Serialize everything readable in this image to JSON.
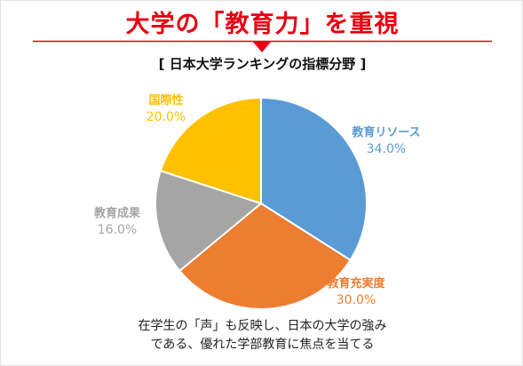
{
  "heading": "大学の「教育力」を重視",
  "chart_data": {
    "type": "pie",
    "title": "[ 日本大学ランキングの指標分野 ]",
    "slices": [
      {
        "label": "教育リソース",
        "value": 34.0,
        "display": "34.0%",
        "color": "#5b9bd5"
      },
      {
        "label": "教育充実度",
        "value": 30.0,
        "display": "30.0%",
        "color": "#ed7d31"
      },
      {
        "label": "教育成果",
        "value": 16.0,
        "display": "16.0%",
        "color": "#a5a5a5"
      },
      {
        "label": "国際性",
        "value": 20.0,
        "display": "20.0%",
        "color": "#ffc000"
      }
    ],
    "start": "12 o'clock",
    "direction": "clockwise"
  },
  "caption": {
    "line1": "在学生の「声」も反映し、日本の大学の強み",
    "line2": "である、優れた学部教育に焦点を当てる"
  },
  "colors": {
    "accent": "#e60012"
  }
}
